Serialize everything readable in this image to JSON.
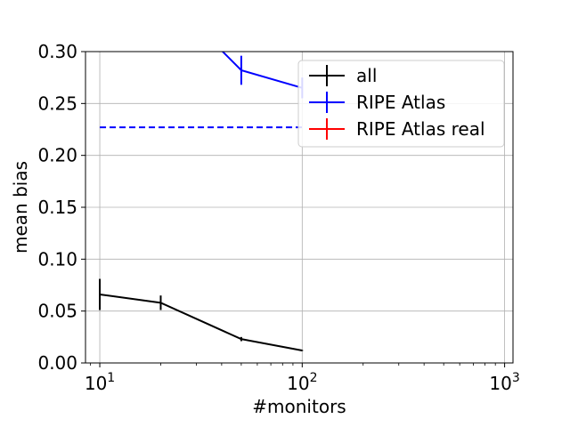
{
  "chart_data": {
    "type": "line",
    "title": "",
    "xlabel": "#monitors",
    "ylabel": "mean bias",
    "xscale": "log",
    "xlim": [
      8.5,
      1100
    ],
    "ylim": [
      0,
      0.3
    ],
    "x_ticks": [
      {
        "value": 10,
        "base": "10",
        "exp": "1"
      },
      {
        "value": 100,
        "base": "10",
        "exp": "2"
      },
      {
        "value": 1000,
        "base": "10",
        "exp": "3"
      }
    ],
    "y_ticks": [
      {
        "value": 0.0,
        "label": "0.00"
      },
      {
        "value": 0.05,
        "label": "0.05"
      },
      {
        "value": 0.1,
        "label": "0.10"
      },
      {
        "value": 0.15,
        "label": "0.15"
      },
      {
        "value": 0.2,
        "label": "0.20"
      },
      {
        "value": 0.25,
        "label": "0.25"
      },
      {
        "value": 0.3,
        "label": "0.30"
      }
    ],
    "grid": true,
    "legend_position": "top-right",
    "series": [
      {
        "name": "all",
        "color": "#000000",
        "points": [
          {
            "x": 10,
            "y": 0.066,
            "err": 0.015
          },
          {
            "x": 20,
            "y": 0.058,
            "err": 0.007
          },
          {
            "x": 50,
            "y": 0.023,
            "err": 0.002
          },
          {
            "x": 100,
            "y": 0.012,
            "err": 0.0005
          }
        ]
      },
      {
        "name": "RIPE Atlas",
        "color": "#0000ff",
        "points": [
          {
            "x": 20,
            "y": 0.36,
            "err": 0.01
          },
          {
            "x": 50,
            "y": 0.282,
            "err": 0.014
          },
          {
            "x": 100,
            "y": 0.265,
            "err": 0.01
          }
        ]
      },
      {
        "name": "RIPE Atlas real",
        "color": "#ff0000",
        "points": []
      }
    ],
    "reference_lines": [
      {
        "y": 0.227,
        "color": "#0000ff",
        "style": "dashed",
        "x_from": 10,
        "x_to": 100
      }
    ]
  }
}
